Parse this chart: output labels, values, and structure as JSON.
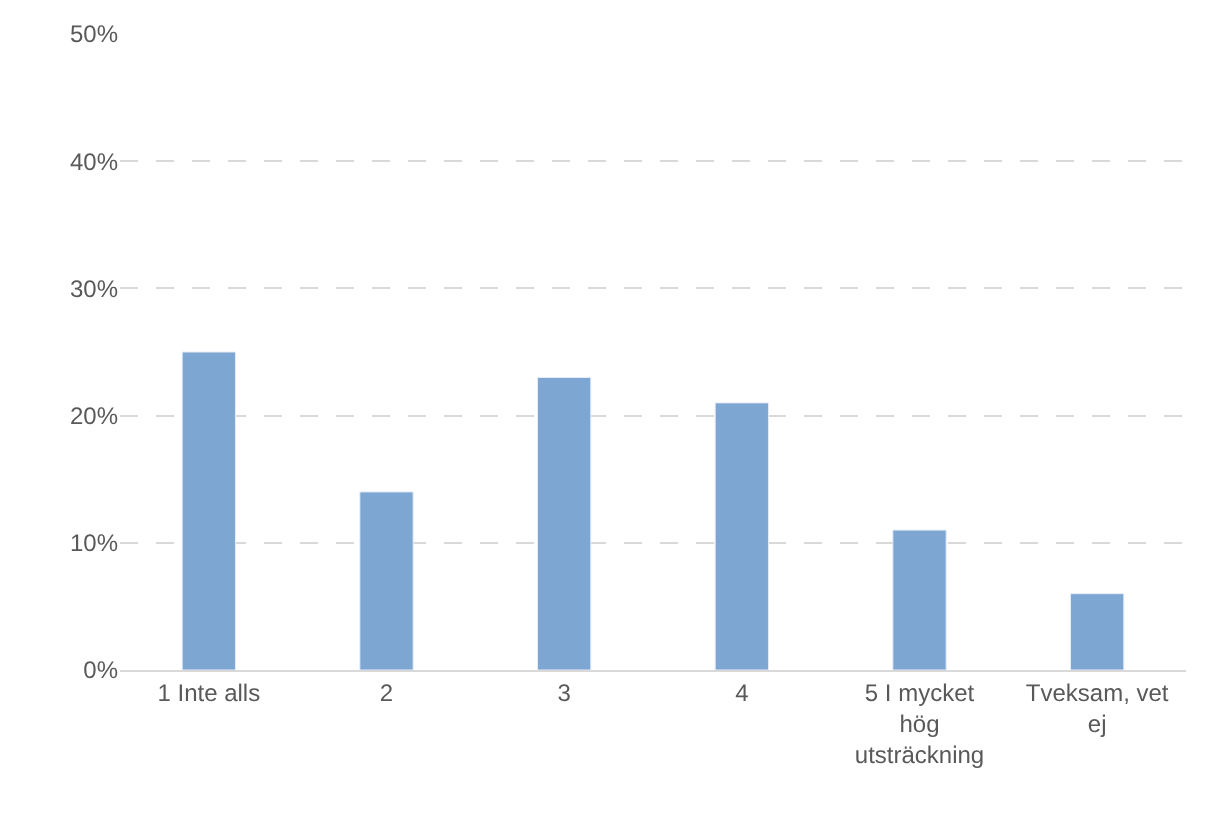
{
  "chart_data": {
    "type": "bar",
    "categories": [
      "1 Inte alls",
      "2",
      "3",
      "4",
      "5 I mycket hög utsträckning",
      "Tveksam, vet ej"
    ],
    "values": [
      25,
      14,
      23,
      21,
      11,
      6
    ],
    "color": "#7ea6d3",
    "ylim": [
      0,
      50
    ],
    "yticks": [
      {
        "value": 0,
        "label": "0%"
      },
      {
        "value": 10,
        "label": "10%"
      },
      {
        "value": 20,
        "label": "20%"
      },
      {
        "value": 30,
        "label": "30%"
      },
      {
        "value": 40,
        "label": "40%"
      },
      {
        "value": 50,
        "label": "50%"
      }
    ],
    "grid": "y",
    "legend": false
  }
}
